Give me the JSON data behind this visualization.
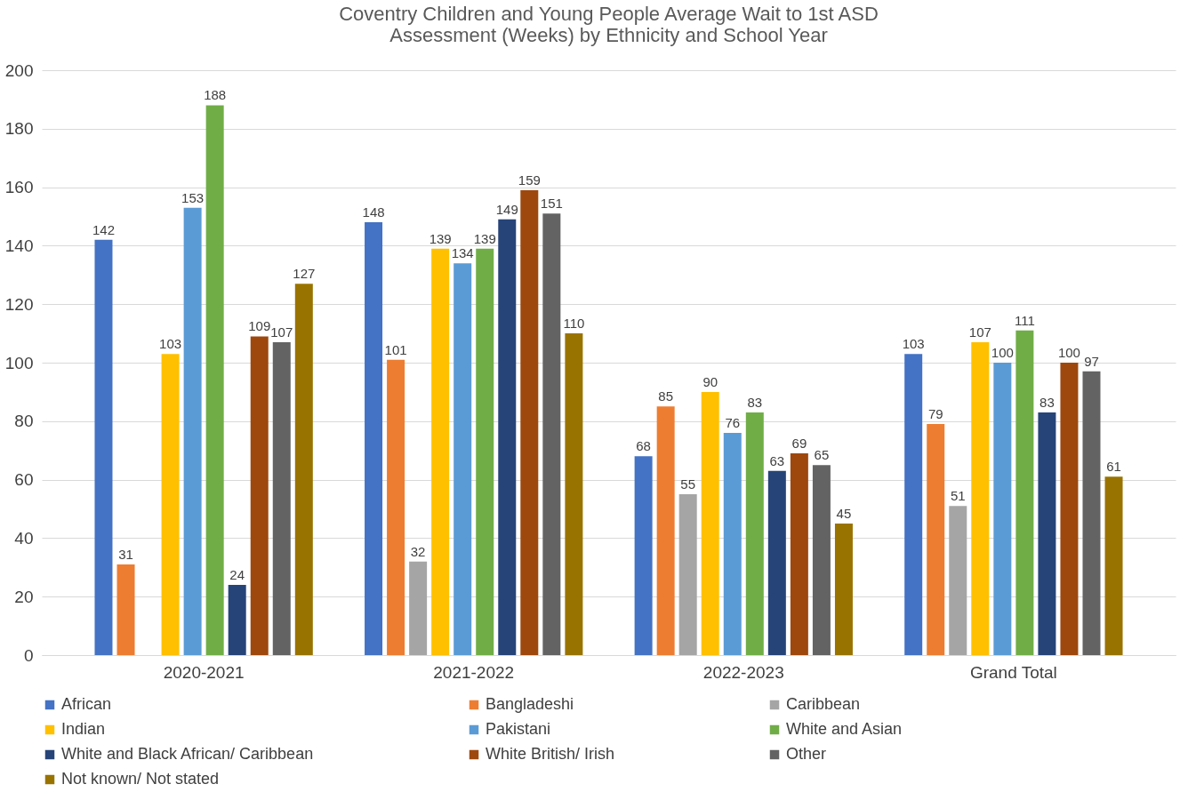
{
  "chart_data": {
    "type": "bar",
    "title": "Coventry Children and Young People Average Wait to 1st ASD Assessment (Weeks) by Ethnicity and School Year",
    "categories": [
      "2020-2021",
      "2021-2022",
      "2022-2023",
      "Grand Total"
    ],
    "series": [
      {
        "name": "African",
        "color": "#4472c4",
        "values": [
          142,
          148,
          68,
          103
        ]
      },
      {
        "name": "Bangladeshi",
        "color": "#ed7d31",
        "values": [
          31,
          101,
          85,
          79
        ]
      },
      {
        "name": "Caribbean",
        "color": "#a5a5a5",
        "values": [
          null,
          32,
          55,
          51
        ]
      },
      {
        "name": "Indian",
        "color": "#ffc000",
        "values": [
          103,
          139,
          90,
          107
        ]
      },
      {
        "name": "Pakistani",
        "color": "#5b9bd5",
        "values": [
          153,
          134,
          76,
          100
        ]
      },
      {
        "name": "White and Asian",
        "color": "#70ad47",
        "values": [
          188,
          139,
          83,
          111
        ]
      },
      {
        "name": "White and Black African/ Caribbean",
        "color": "#264478",
        "values": [
          24,
          149,
          63,
          83
        ]
      },
      {
        "name": "White British/ Irish",
        "color": "#9e480e",
        "values": [
          109,
          159,
          69,
          100
        ]
      },
      {
        "name": "Other",
        "color": "#636363",
        "values": [
          107,
          151,
          65,
          97
        ]
      },
      {
        "name": "Not known/ Not stated",
        "color": "#997300",
        "values": [
          127,
          110,
          45,
          61
        ]
      }
    ],
    "ylim": [
      0,
      200
    ],
    "yticks": [
      0,
      20,
      40,
      60,
      80,
      100,
      120,
      140,
      160,
      180,
      200
    ],
    "grid": "y",
    "legend": "bottom",
    "data_labels": true
  }
}
